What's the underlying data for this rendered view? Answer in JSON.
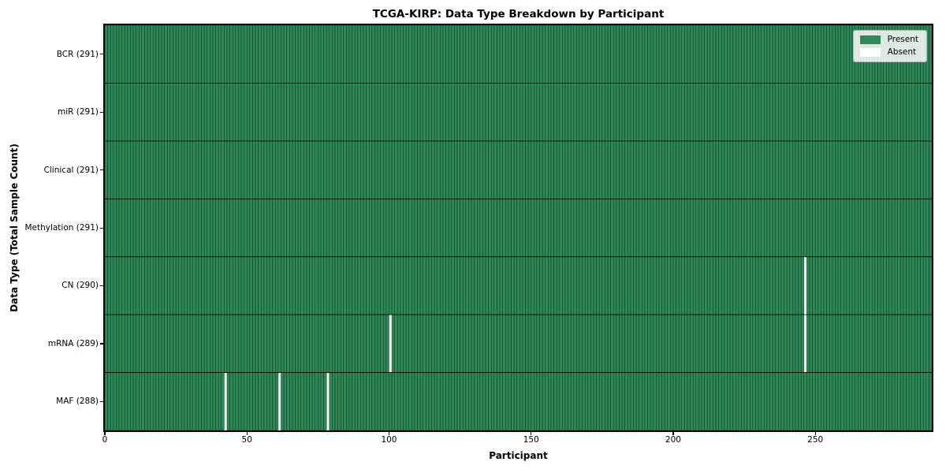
{
  "figure": {
    "title": "TCGA-KIRP: Data Type Breakdown by Participant",
    "xlabel": "Participant",
    "ylabel": "Data Type (Total Sample Count)"
  },
  "legend": {
    "items": [
      {
        "label": "Present",
        "color": "#2E8B57"
      },
      {
        "label": "Absent",
        "color": "#FFFFFF"
      }
    ]
  },
  "chart_data": {
    "type": "heatmap",
    "title": "TCGA-KIRP: Data Type Breakdown by Participant",
    "xlabel": "Participant",
    "ylabel": "Data Type (Total Sample Count)",
    "n_participants": 291,
    "x_ticks": [
      0,
      50,
      100,
      150,
      200,
      250
    ],
    "x_range": [
      0,
      291
    ],
    "categories": [
      "BCR (291)",
      "miR (291)",
      "Clinical (291)",
      "Methylation (291)",
      "CN (290)",
      "mRNA (289)",
      "MAF (288)"
    ],
    "rows": [
      {
        "data_type": "BCR",
        "label": "BCR (291)",
        "total_samples": 291,
        "absent_participant_indices": []
      },
      {
        "data_type": "miR",
        "label": "miR (291)",
        "total_samples": 291,
        "absent_participant_indices": []
      },
      {
        "data_type": "Clinical",
        "label": "Clinical (291)",
        "total_samples": 291,
        "absent_participant_indices": []
      },
      {
        "data_type": "Methylation",
        "label": "Methylation (291)",
        "total_samples": 291,
        "absent_participant_indices": []
      },
      {
        "data_type": "CN",
        "label": "CN (290)",
        "total_samples": 290,
        "absent_participant_indices": [
          246
        ]
      },
      {
        "data_type": "mRNA",
        "label": "mRNA (289)",
        "total_samples": 289,
        "absent_participant_indices": [
          100,
          246
        ]
      },
      {
        "data_type": "MAF",
        "label": "MAF (288)",
        "total_samples": 288,
        "absent_participant_indices": [
          42,
          61,
          78
        ]
      }
    ],
    "colors": {
      "present": "#2E8B57",
      "absent": "#FFFFFF",
      "cell_edge": "#0c2d1c",
      "row_divider": "#000000",
      "spine": "#000000"
    },
    "legend_entries": [
      "Present",
      "Absent"
    ],
    "legend_position": "upper-right",
    "grid": false
  }
}
